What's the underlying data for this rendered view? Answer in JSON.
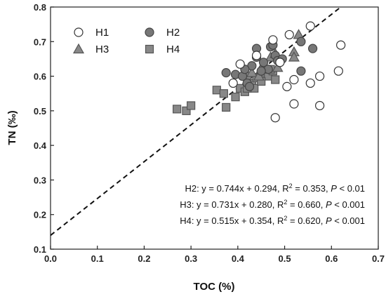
{
  "chart_data": {
    "type": "scatter",
    "xlabel": "TOC (%)",
    "ylabel": "TN (‰)",
    "xlim": [
      0.0,
      0.7
    ],
    "ylim": [
      0.1,
      0.8
    ],
    "xticks": [
      "0.0",
      "0.1",
      "0.2",
      "0.3",
      "0.4",
      "0.5",
      "0.6",
      "0.7"
    ],
    "yticks": [
      "0.1",
      "0.2",
      "0.3",
      "0.4",
      "0.5",
      "0.6",
      "0.7",
      "0.8"
    ],
    "grid": false,
    "legend_position": "top-left",
    "series": [
      {
        "name": "H1",
        "marker": "circle-open",
        "color": "#ffffff",
        "stroke": "#333333",
        "points": [
          [
            0.405,
            0.635
          ],
          [
            0.44,
            0.66
          ],
          [
            0.475,
            0.705
          ],
          [
            0.51,
            0.72
          ],
          [
            0.555,
            0.745
          ],
          [
            0.62,
            0.69
          ],
          [
            0.39,
            0.58
          ],
          [
            0.49,
            0.64
          ],
          [
            0.52,
            0.59
          ],
          [
            0.505,
            0.57
          ],
          [
            0.555,
            0.58
          ],
          [
            0.575,
            0.6
          ],
          [
            0.615,
            0.615
          ],
          [
            0.48,
            0.48
          ],
          [
            0.52,
            0.52
          ],
          [
            0.575,
            0.515
          ]
        ]
      },
      {
        "name": "H2",
        "marker": "circle",
        "color": "#777777",
        "stroke": "#444444",
        "points": [
          [
            0.375,
            0.61
          ],
          [
            0.395,
            0.605
          ],
          [
            0.41,
            0.6
          ],
          [
            0.42,
            0.58
          ],
          [
            0.425,
            0.57
          ],
          [
            0.43,
            0.63
          ],
          [
            0.44,
            0.655
          ],
          [
            0.44,
            0.68
          ],
          [
            0.455,
            0.64
          ],
          [
            0.465,
            0.62
          ],
          [
            0.47,
            0.685
          ],
          [
            0.475,
            0.69
          ],
          [
            0.48,
            0.66
          ],
          [
            0.485,
            0.645
          ],
          [
            0.495,
            0.65
          ],
          [
            0.535,
            0.7
          ],
          [
            0.56,
            0.68
          ],
          [
            0.535,
            0.615
          ],
          [
            0.45,
            0.615
          ],
          [
            0.415,
            0.62
          ]
        ]
      },
      {
        "name": "H3",
        "marker": "triangle",
        "color": "#888888",
        "stroke": "#555555",
        "points": [
          [
            0.43,
            0.61
          ],
          [
            0.45,
            0.62
          ],
          [
            0.455,
            0.635
          ],
          [
            0.47,
            0.655
          ],
          [
            0.48,
            0.665
          ],
          [
            0.53,
            0.72
          ],
          [
            0.52,
            0.67
          ],
          [
            0.52,
            0.655
          ],
          [
            0.485,
            0.625
          ],
          [
            0.445,
            0.6
          ]
        ]
      },
      {
        "name": "H4",
        "marker": "square",
        "color": "#888888",
        "stroke": "#555555",
        "points": [
          [
            0.27,
            0.505
          ],
          [
            0.29,
            0.5
          ],
          [
            0.3,
            0.515
          ],
          [
            0.355,
            0.56
          ],
          [
            0.37,
            0.55
          ],
          [
            0.375,
            0.51
          ],
          [
            0.395,
            0.54
          ],
          [
            0.405,
            0.565
          ],
          [
            0.415,
            0.555
          ],
          [
            0.42,
            0.6
          ],
          [
            0.43,
            0.58
          ],
          [
            0.435,
            0.565
          ],
          [
            0.44,
            0.595
          ],
          [
            0.455,
            0.61
          ],
          [
            0.465,
            0.6
          ],
          [
            0.475,
            0.615
          ],
          [
            0.48,
            0.59
          ],
          [
            0.42,
            0.565
          ],
          [
            0.45,
            0.585
          ],
          [
            0.47,
            0.62
          ]
        ]
      }
    ],
    "trendline": {
      "style": "dashed",
      "color": "#111111",
      "x": [
        0.0,
        0.62
      ],
      "y": [
        0.14,
        0.8
      ]
    },
    "annotations": [
      {
        "label": "H2: y = 0.744x + 0.294, R",
        "sup": "2",
        "mid": " = 0.353, ",
        "p": "P",
        "tail": " < 0.01"
      },
      {
        "label": "H3: y = 0.731x + 0.280, R",
        "sup": "2",
        "mid": " = 0.660, ",
        "p": "P",
        "tail": " < 0.001"
      },
      {
        "label": "H4: y = 0.515x + 0.354, R",
        "sup": "2",
        "mid": " = 0.620, ",
        "p": "P",
        "tail": " < 0.001"
      }
    ]
  }
}
